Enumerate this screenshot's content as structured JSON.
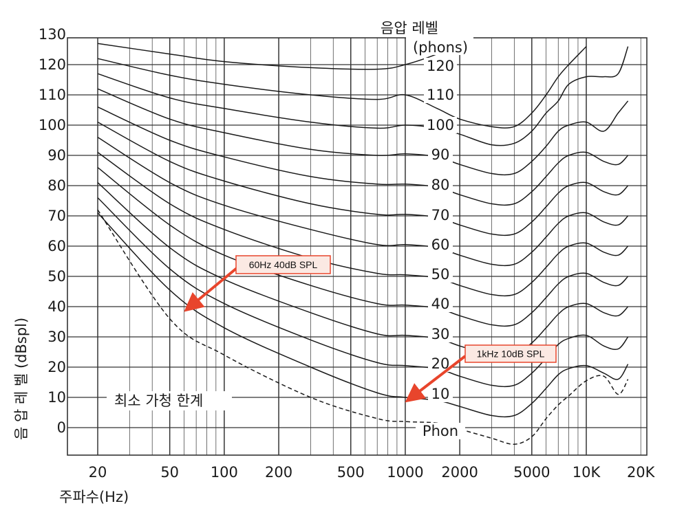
{
  "chart_data": {
    "type": "line",
    "title": "",
    "legend_title": [
      "음압 레벨",
      "(phons)"
    ],
    "xlabel": "주파수(Hz)",
    "ylabel": "음 압 레 벨 (dBspl)",
    "x_scale": "log",
    "xlim": [
      20,
      20000
    ],
    "ylim": [
      -10,
      130
    ],
    "x_tick_labels": [
      {
        "value": 20,
        "label": "20"
      },
      {
        "value": 50,
        "label": "50"
      },
      {
        "value": 100,
        "label": "100"
      },
      {
        "value": 200,
        "label": "200"
      },
      {
        "value": 500,
        "label": "500"
      },
      {
        "value": 1000,
        "label": "1000"
      },
      {
        "value": 2000,
        "label": "2000"
      },
      {
        "value": 5000,
        "label": "5000"
      },
      {
        "value": 10000,
        "label": "10K"
      },
      {
        "value": 20000,
        "label": "20K"
      }
    ],
    "y_ticks": [
      0,
      10,
      20,
      30,
      40,
      50,
      60,
      70,
      80,
      90,
      100,
      110,
      120,
      130
    ],
    "grid": true,
    "x_grid_values": [
      20,
      30,
      40,
      50,
      60,
      70,
      80,
      90,
      100,
      200,
      300,
      400,
      500,
      600,
      700,
      800,
      900,
      1000,
      2000,
      3000,
      4000,
      5000,
      6000,
      7000,
      8000,
      9000,
      10000,
      20000
    ],
    "y_grid_values": [
      -10,
      0,
      10,
      20,
      30,
      40,
      50,
      60,
      70,
      80,
      90,
      100,
      110,
      120,
      130
    ],
    "curve_labels": [
      "120",
      "110",
      "100",
      "90",
      "80",
      "70",
      "60",
      "50",
      "40",
      "30",
      "20",
      "10",
      "Phon"
    ],
    "threshold_label": "최소 가청 한계",
    "series": [
      {
        "name": "120",
        "x": [
          20,
          50,
          100,
          300,
          700,
          1000,
          1500,
          2000,
          3000,
          4000,
          6000,
          8000,
          10000,
          12500,
          15000
        ],
        "y": [
          127,
          123.5,
          121,
          119,
          118.5,
          120,
          123.5,
          127,
          131,
          133,
          133,
          133,
          131,
          133,
          135
        ]
      },
      {
        "name": "110",
        "x": [
          20,
          50,
          100,
          300,
          700,
          1000,
          1500,
          2000,
          3000,
          4000,
          5000,
          6000,
          7000,
          8000,
          10000,
          12500,
          15000
        ],
        "y": [
          122,
          116.5,
          113.5,
          110,
          108.5,
          110,
          105.5,
          102,
          99.5,
          99.5,
          104,
          110,
          116,
          120,
          126,
          131,
          133
        ]
      },
      {
        "name": "100",
        "x": [
          20,
          50,
          100,
          300,
          700,
          1000,
          1500,
          2000,
          3000,
          4000,
          5000,
          6000,
          7000,
          8000,
          10000,
          12500,
          15000,
          17000
        ],
        "y": [
          117,
          109,
          105.5,
          101,
          99,
          100,
          99,
          97,
          93.5,
          94,
          98,
          104,
          108,
          113.5,
          116,
          116,
          117,
          126
        ]
      },
      {
        "name": "90",
        "x": [
          20,
          50,
          100,
          300,
          700,
          1000,
          1500,
          2000,
          3000,
          4000,
          5000,
          6000,
          7000,
          8000,
          10000,
          12500,
          15000,
          17000
        ],
        "y": [
          112,
          102,
          97.5,
          92,
          90,
          90.5,
          89.5,
          87,
          84,
          84,
          88,
          93,
          98,
          100,
          101,
          98,
          104,
          108
        ]
      },
      {
        "name": "80",
        "x": [
          20,
          50,
          100,
          300,
          700,
          1000,
          1500,
          2000,
          3000,
          4000,
          5000,
          6000,
          7000,
          8000,
          10000,
          12500,
          15000,
          17000
        ],
        "y": [
          106,
          95,
          89.5,
          83,
          80.5,
          80.5,
          79.5,
          77,
          74,
          74,
          78,
          83,
          87.5,
          90,
          91,
          88,
          87,
          90
        ]
      },
      {
        "name": "70",
        "x": [
          20,
          50,
          100,
          300,
          700,
          1000,
          1500,
          2000,
          3000,
          4000,
          5000,
          6000,
          7000,
          8000,
          10000,
          12500,
          15000,
          17000
        ],
        "y": [
          101,
          88,
          81.5,
          74,
          70.5,
          70.5,
          69.5,
          67,
          64,
          64,
          68,
          73,
          77.5,
          80,
          81,
          78,
          77,
          80
        ]
      },
      {
        "name": "60",
        "x": [
          20,
          50,
          100,
          300,
          700,
          1000,
          1500,
          2000,
          3000,
          4000,
          5000,
          6000,
          7000,
          8000,
          10000,
          12500,
          15000,
          17000
        ],
        "y": [
          96,
          81,
          73.5,
          65.5,
          60.5,
          60.5,
          59.5,
          57,
          54,
          54,
          58,
          63,
          67.5,
          70,
          71,
          68,
          67,
          70
        ]
      },
      {
        "name": "50",
        "x": [
          20,
          50,
          100,
          300,
          700,
          1000,
          1500,
          2000,
          3000,
          4000,
          5000,
          6000,
          7000,
          8000,
          10000,
          12500,
          15000,
          17000
        ],
        "y": [
          91,
          74,
          65.5,
          56,
          51,
          50.5,
          49.5,
          47,
          44,
          44,
          48,
          53,
          57.5,
          60,
          61,
          58,
          57,
          60
        ]
      },
      {
        "name": "40",
        "x": [
          20,
          50,
          100,
          300,
          700,
          1000,
          1500,
          2000,
          3000,
          4000,
          5000,
          6000,
          7000,
          8000,
          10000,
          12500,
          15000,
          17000
        ],
        "y": [
          86,
          67,
          57,
          47,
          41,
          40.5,
          39.5,
          37,
          34,
          34,
          38,
          43,
          47.5,
          50,
          51,
          48,
          47,
          50
        ]
      },
      {
        "name": "30",
        "x": [
          20,
          50,
          100,
          300,
          700,
          1000,
          1500,
          2000,
          3000,
          4000,
          5000,
          6000,
          7000,
          8000,
          10000,
          12500,
          15000,
          17000
        ],
        "y": [
          81,
          59.5,
          49,
          38,
          31,
          30.5,
          29.5,
          27,
          24,
          24,
          28,
          33,
          37.5,
          40,
          41,
          38,
          37,
          40
        ]
      },
      {
        "name": "20",
        "x": [
          20,
          50,
          100,
          300,
          700,
          1000,
          1500,
          2000,
          3000,
          4000,
          5000,
          6000,
          7000,
          8000,
          10000,
          12500,
          15000,
          17000
        ],
        "y": [
          76,
          52.5,
          41,
          29,
          21.5,
          20.5,
          19.5,
          17,
          14,
          14,
          18,
          23,
          27.5,
          29.5,
          30.5,
          27,
          26,
          30
        ]
      },
      {
        "name": "10",
        "x": [
          20,
          50,
          100,
          300,
          700,
          1000,
          1500,
          2000,
          3000,
          4000,
          5000,
          6000,
          7000,
          8000,
          10000,
          12500,
          15000,
          17000
        ],
        "y": [
          71,
          45.5,
          33,
          20,
          11.5,
          10,
          9,
          7,
          4,
          4,
          8,
          13,
          17.5,
          19.5,
          20.5,
          18,
          16,
          21
        ]
      },
      {
        "name": "Phon",
        "x": [
          20,
          50,
          100,
          300,
          700,
          1000,
          1500,
          2000,
          3000,
          4000,
          5000,
          6000,
          7000,
          8000,
          10000,
          12500,
          15000,
          17000
        ],
        "y": [
          72,
          36,
          24,
          10,
          3,
          2,
          1.5,
          -0.5,
          -3.5,
          -5.5,
          -3,
          3,
          7.5,
          10.5,
          15.5,
          17,
          11,
          16
        ],
        "dashed": true
      }
    ],
    "annotations": [
      {
        "text": "60Hz 40dB SPL",
        "target": {
          "x": 60,
          "y": 40
        }
      },
      {
        "text": "1kHz 10dB SPL",
        "target": {
          "x": 1000,
          "y": 10
        }
      }
    ],
    "colors": {
      "curve": "#1a1a1a",
      "grid": "#333333",
      "annotation_border": "#e8452c",
      "annotation_fill": "#fbe9e3",
      "arrow": "#e8452c"
    }
  }
}
